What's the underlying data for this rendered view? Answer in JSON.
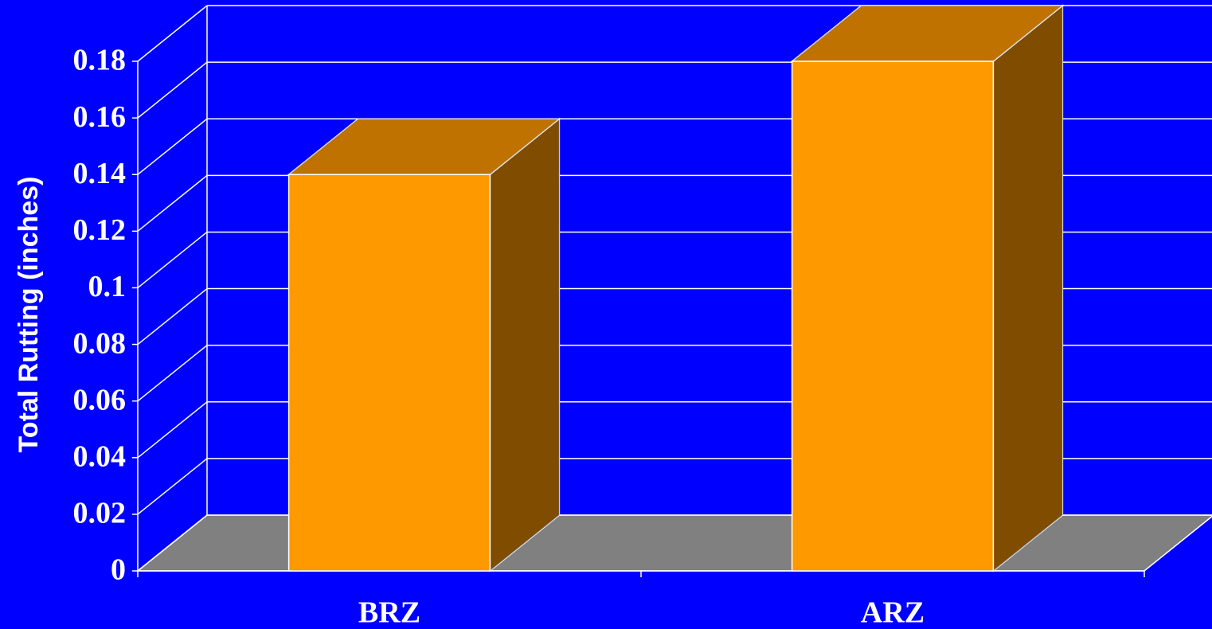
{
  "chart_data": {
    "type": "bar3d",
    "y_axis_label": "Total Rutting (inches)",
    "categories": [
      "BRZ",
      "ARZ"
    ],
    "values": [
      0.14,
      0.18
    ],
    "color": "#ff9900",
    "ylim": [
      0,
      0.18
    ],
    "yticks": [
      0,
      0.02,
      0.04,
      0.06,
      0.08,
      0.1,
      0.12,
      0.14,
      0.16,
      0.18
    ],
    "grid": true
  }
}
